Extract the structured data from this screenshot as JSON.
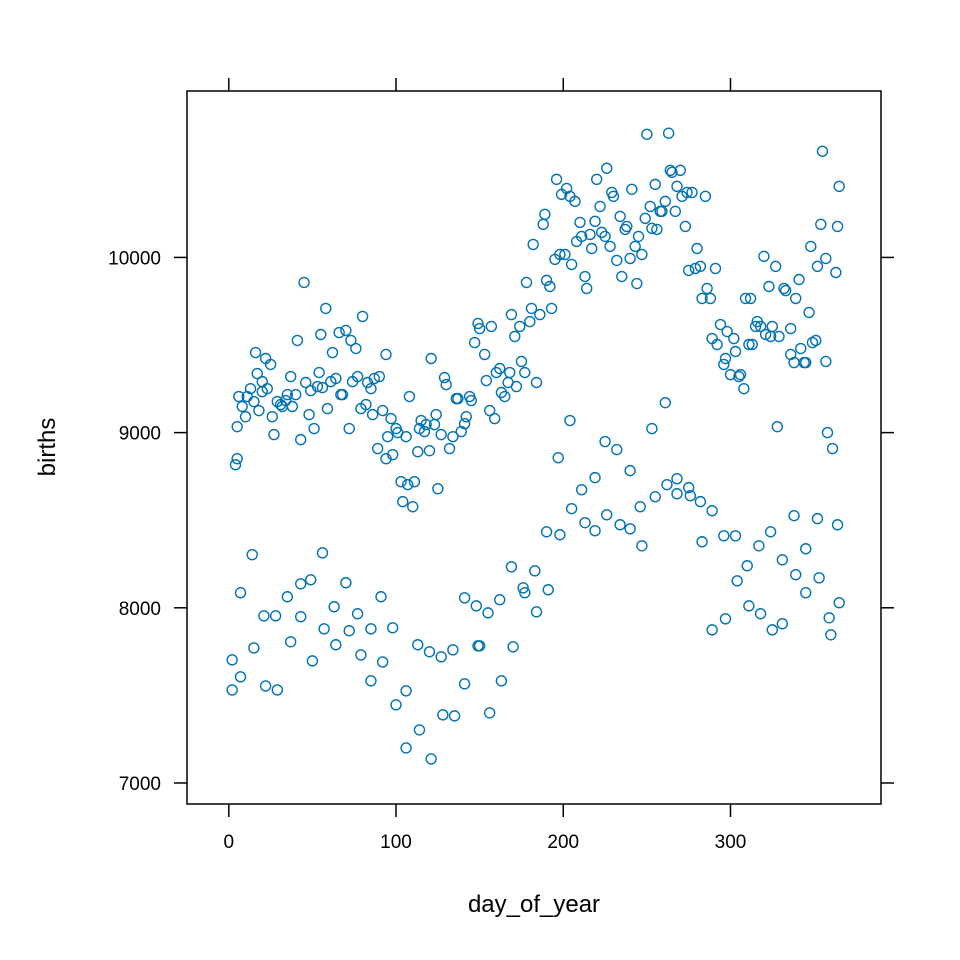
{
  "chart_data": {
    "type": "scatter",
    "title": "",
    "xlabel": "day_of_year",
    "ylabel": "births",
    "xlim": [
      -25,
      390
    ],
    "ylim": [
      6880,
      10950
    ],
    "xticks": [
      0,
      100,
      200,
      300
    ],
    "yticks": [
      7000,
      8000,
      9000,
      10000
    ],
    "xtick_labels": [
      "0",
      "100",
      "200",
      "300"
    ],
    "ytick_labels": [
      "7000",
      "8000",
      "9000",
      "10000"
    ],
    "grid": false,
    "marker": "open-circle",
    "color": "#0072B2",
    "points": [
      [
        2,
        7531
      ],
      [
        2,
        7703
      ],
      [
        7,
        8086
      ],
      [
        7,
        7606
      ],
      [
        14,
        8303
      ],
      [
        15,
        7771
      ],
      [
        21,
        7954
      ],
      [
        22,
        7554
      ],
      [
        28,
        7954
      ],
      [
        29,
        7531
      ],
      [
        35,
        8063
      ],
      [
        37,
        7806
      ],
      [
        43,
        8137
      ],
      [
        43,
        7949
      ],
      [
        49,
        8160
      ],
      [
        50,
        7697
      ],
      [
        56,
        8314
      ],
      [
        57,
        7880
      ],
      [
        63,
        8006
      ],
      [
        64,
        7789
      ],
      [
        70,
        8143
      ],
      [
        72,
        7869
      ],
      [
        77,
        7966
      ],
      [
        79,
        7731
      ],
      [
        85,
        7880
      ],
      [
        85,
        7583
      ],
      [
        91,
        8063
      ],
      [
        92,
        7691
      ],
      [
        98,
        7886
      ],
      [
        100,
        7446
      ],
      [
        106,
        7526
      ],
      [
        106,
        7200
      ],
      [
        113,
        7789
      ],
      [
        114,
        7303
      ],
      [
        120,
        7749
      ],
      [
        121,
        7137
      ],
      [
        127,
        7720
      ],
      [
        128,
        7389
      ],
      [
        134,
        7760
      ],
      [
        135,
        7383
      ],
      [
        141,
        8057
      ],
      [
        141,
        7566
      ],
      [
        148,
        8011
      ],
      [
        149,
        7783
      ],
      [
        150,
        7783
      ],
      [
        155,
        7971
      ],
      [
        156,
        7400
      ],
      [
        162,
        8046
      ],
      [
        163,
        7583
      ],
      [
        169,
        8234
      ],
      [
        170,
        7777
      ],
      [
        176,
        8114
      ],
      [
        177,
        8086
      ],
      [
        183,
        8211
      ],
      [
        184,
        7977
      ],
      [
        190,
        8434
      ],
      [
        191,
        8103
      ],
      [
        197,
        8857
      ],
      [
        198,
        8417
      ],
      [
        204,
        9069
      ],
      [
        205,
        8566
      ],
      [
        211,
        8674
      ],
      [
        213,
        8486
      ],
      [
        219,
        8743
      ],
      [
        219,
        8440
      ],
      [
        225,
        8949
      ],
      [
        226,
        8531
      ],
      [
        232,
        8903
      ],
      [
        234,
        8474
      ],
      [
        240,
        8783
      ],
      [
        240,
        8451
      ],
      [
        246,
        8577
      ],
      [
        247,
        8354
      ],
      [
        253,
        9023
      ],
      [
        255,
        8634
      ],
      [
        261,
        9171
      ],
      [
        262,
        8703
      ],
      [
        268,
        8737
      ],
      [
        268,
        8651
      ],
      [
        275,
        8686
      ],
      [
        276,
        8640
      ],
      [
        282,
        8606
      ],
      [
        283,
        8377
      ],
      [
        289,
        8554
      ],
      [
        289,
        7874
      ],
      [
        296,
        8411
      ],
      [
        297,
        7937
      ],
      [
        303,
        8411
      ],
      [
        304,
        8154
      ],
      [
        310,
        8240
      ],
      [
        311,
        8011
      ],
      [
        317,
        8354
      ],
      [
        318,
        7966
      ],
      [
        324,
        8434
      ],
      [
        325,
        7874
      ],
      [
        328,
        9034
      ],
      [
        331,
        8274
      ],
      [
        331,
        7909
      ],
      [
        338,
        8526
      ],
      [
        339,
        8189
      ],
      [
        345,
        8337
      ],
      [
        345,
        8086
      ],
      [
        352,
        8509
      ],
      [
        353,
        8171
      ],
      [
        359,
        7943
      ],
      [
        360,
        7846
      ],
      [
        364,
        8474
      ],
      [
        365,
        8029
      ],
      [
        4,
        8817
      ],
      [
        5,
        8851
      ],
      [
        5,
        9034
      ],
      [
        6,
        9206
      ],
      [
        8,
        9149
      ],
      [
        10,
        9091
      ],
      [
        11,
        9206
      ],
      [
        13,
        9251
      ],
      [
        15,
        9177
      ],
      [
        16,
        9457
      ],
      [
        17,
        9337
      ],
      [
        18,
        9126
      ],
      [
        20,
        9291
      ],
      [
        20,
        9234
      ],
      [
        22,
        9423
      ],
      [
        23,
        9251
      ],
      [
        25,
        9389
      ],
      [
        26,
        9091
      ],
      [
        27,
        8989
      ],
      [
        29,
        9177
      ],
      [
        31,
        9160
      ],
      [
        32,
        9149
      ],
      [
        34,
        9183
      ],
      [
        35,
        9217
      ],
      [
        37,
        9320
      ],
      [
        38,
        9149
      ],
      [
        40,
        9217
      ],
      [
        41,
        9526
      ],
      [
        43,
        8960
      ],
      [
        45,
        9857
      ],
      [
        46,
        9286
      ],
      [
        48,
        9103
      ],
      [
        49,
        9240
      ],
      [
        51,
        9023
      ],
      [
        53,
        9263
      ],
      [
        54,
        9343
      ],
      [
        55,
        9560
      ],
      [
        56,
        9257
      ],
      [
        58,
        9709
      ],
      [
        59,
        9137
      ],
      [
        61,
        9291
      ],
      [
        62,
        9457
      ],
      [
        64,
        9309
      ],
      [
        66,
        9571
      ],
      [
        67,
        9217
      ],
      [
        68,
        9217
      ],
      [
        70,
        9583
      ],
      [
        72,
        9023
      ],
      [
        73,
        9526
      ],
      [
        74,
        9291
      ],
      [
        76,
        9480
      ],
      [
        77,
        9320
      ],
      [
        79,
        9137
      ],
      [
        80,
        9663
      ],
      [
        82,
        9160
      ],
      [
        83,
        9286
      ],
      [
        85,
        9251
      ],
      [
        86,
        9103
      ],
      [
        87,
        9309
      ],
      [
        89,
        8909
      ],
      [
        90,
        9320
      ],
      [
        92,
        9126
      ],
      [
        94,
        9446
      ],
      [
        94,
        8851
      ],
      [
        95,
        8977
      ],
      [
        97,
        9080
      ],
      [
        98,
        8874
      ],
      [
        100,
        9023
      ],
      [
        101,
        9000
      ],
      [
        103,
        8720
      ],
      [
        104,
        8606
      ],
      [
        106,
        8977
      ],
      [
        107,
        8703
      ],
      [
        108,
        9206
      ],
      [
        110,
        8577
      ],
      [
        111,
        8720
      ],
      [
        113,
        8891
      ],
      [
        114,
        9023
      ],
      [
        115,
        9069
      ],
      [
        117,
        9006
      ],
      [
        118,
        9046
      ],
      [
        120,
        8897
      ],
      [
        121,
        9423
      ],
      [
        123,
        9046
      ],
      [
        124,
        9103
      ],
      [
        125,
        8680
      ],
      [
        127,
        8989
      ],
      [
        129,
        9314
      ],
      [
        130,
        9274
      ],
      [
        132,
        8909
      ],
      [
        134,
        8977
      ],
      [
        136,
        9194
      ],
      [
        137,
        9194
      ],
      [
        139,
        9006
      ],
      [
        141,
        9051
      ],
      [
        142,
        9091
      ],
      [
        144,
        9206
      ],
      [
        145,
        9183
      ],
      [
        147,
        9514
      ],
      [
        149,
        9623
      ],
      [
        150,
        9594
      ],
      [
        153,
        9446
      ],
      [
        154,
        9297
      ],
      [
        156,
        9126
      ],
      [
        157,
        9606
      ],
      [
        159,
        9080
      ],
      [
        160,
        9343
      ],
      [
        162,
        9366
      ],
      [
        163,
        9229
      ],
      [
        165,
        9206
      ],
      [
        167,
        9286
      ],
      [
        168,
        9343
      ],
      [
        169,
        9674
      ],
      [
        171,
        9549
      ],
      [
        172,
        9263
      ],
      [
        174,
        9606
      ],
      [
        175,
        9406
      ],
      [
        177,
        9343
      ],
      [
        178,
        9857
      ],
      [
        180,
        9634
      ],
      [
        181,
        9709
      ],
      [
        182,
        10074
      ],
      [
        184,
        9286
      ],
      [
        186,
        9674
      ],
      [
        188,
        10189
      ],
      [
        189,
        10246
      ],
      [
        190,
        9869
      ],
      [
        192,
        9834
      ],
      [
        193,
        9709
      ],
      [
        195,
        9989
      ],
      [
        196,
        10446
      ],
      [
        198,
        10017
      ],
      [
        199,
        10360
      ],
      [
        201,
        10017
      ],
      [
        202,
        10394
      ],
      [
        204,
        10349
      ],
      [
        205,
        9960
      ],
      [
        207,
        10320
      ],
      [
        208,
        10091
      ],
      [
        210,
        10200
      ],
      [
        211,
        10120
      ],
      [
        213,
        9891
      ],
      [
        214,
        9823
      ],
      [
        216,
        10131
      ],
      [
        217,
        10051
      ],
      [
        219,
        10206
      ],
      [
        220,
        10446
      ],
      [
        222,
        10291
      ],
      [
        223,
        10143
      ],
      [
        225,
        10120
      ],
      [
        226,
        10509
      ],
      [
        228,
        10063
      ],
      [
        229,
        10371
      ],
      [
        230,
        10349
      ],
      [
        232,
        9983
      ],
      [
        234,
        10234
      ],
      [
        235,
        9891
      ],
      [
        237,
        10160
      ],
      [
        238,
        10177
      ],
      [
        240,
        9994
      ],
      [
        241,
        10389
      ],
      [
        243,
        10063
      ],
      [
        244,
        9851
      ],
      [
        245,
        10120
      ],
      [
        247,
        10017
      ],
      [
        249,
        10223
      ],
      [
        250,
        10703
      ],
      [
        252,
        10291
      ],
      [
        253,
        10166
      ],
      [
        255,
        10417
      ],
      [
        256,
        10160
      ],
      [
        258,
        10263
      ],
      [
        259,
        10263
      ],
      [
        261,
        10320
      ],
      [
        263,
        10709
      ],
      [
        264,
        10497
      ],
      [
        265,
        10486
      ],
      [
        267,
        10263
      ],
      [
        268,
        10406
      ],
      [
        270,
        10497
      ],
      [
        271,
        10349
      ],
      [
        273,
        10177
      ],
      [
        274,
        10371
      ],
      [
        275,
        9926
      ],
      [
        277,
        10371
      ],
      [
        279,
        9937
      ],
      [
        280,
        10051
      ],
      [
        282,
        9949
      ],
      [
        283,
        9766
      ],
      [
        285,
        10349
      ],
      [
        286,
        9823
      ],
      [
        288,
        9766
      ],
      [
        289,
        9537
      ],
      [
        291,
        9937
      ],
      [
        292,
        9503
      ],
      [
        294,
        9617
      ],
      [
        296,
        9389
      ],
      [
        297,
        9423
      ],
      [
        298,
        9577
      ],
      [
        300,
        9331
      ],
      [
        302,
        9537
      ],
      [
        303,
        9463
      ],
      [
        305,
        9320
      ],
      [
        306,
        9331
      ],
      [
        308,
        9251
      ],
      [
        309,
        9766
      ],
      [
        311,
        9503
      ],
      [
        312,
        9766
      ],
      [
        313,
        9503
      ],
      [
        315,
        9606
      ],
      [
        316,
        9634
      ],
      [
        318,
        9606
      ],
      [
        320,
        10006
      ],
      [
        321,
        9560
      ],
      [
        323,
        9834
      ],
      [
        324,
        9549
      ],
      [
        325,
        9606
      ],
      [
        327,
        9949
      ],
      [
        329,
        9549
      ],
      [
        332,
        9823
      ],
      [
        333,
        9811
      ],
      [
        336,
        9594
      ],
      [
        336,
        9446
      ],
      [
        338,
        9400
      ],
      [
        339,
        9766
      ],
      [
        341,
        9874
      ],
      [
        342,
        9480
      ],
      [
        344,
        9400
      ],
      [
        345,
        9400
      ],
      [
        347,
        9686
      ],
      [
        348,
        10063
      ],
      [
        349,
        9514
      ],
      [
        351,
        9526
      ],
      [
        352,
        9949
      ],
      [
        354,
        10189
      ],
      [
        355,
        10606
      ],
      [
        357,
        9994
      ],
      [
        357,
        9406
      ],
      [
        358,
        9000
      ],
      [
        361,
        8909
      ],
      [
        363,
        9914
      ],
      [
        364,
        10177
      ],
      [
        365,
        10406
      ]
    ]
  }
}
